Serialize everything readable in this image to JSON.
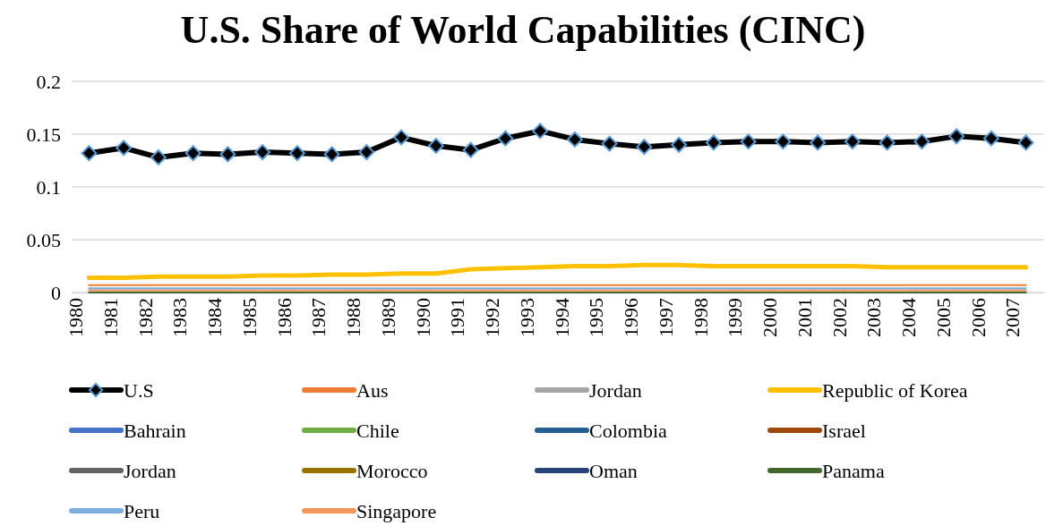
{
  "chart_data": {
    "type": "line",
    "title": "U.S. Share of World Capabilities (CINC)",
    "categories": [
      "1980",
      "1981",
      "1982",
      "1983",
      "1984",
      "1985",
      "1986",
      "1987",
      "1988",
      "1989",
      "1990",
      "1991",
      "1992",
      "1993",
      "1994",
      "1995",
      "1996",
      "1997",
      "1998",
      "1999",
      "2000",
      "2001",
      "2002",
      "2003",
      "2004",
      "2005",
      "2006",
      "2007"
    ],
    "ylim": [
      0,
      0.2
    ],
    "yticks": [
      0,
      0.05,
      0.1,
      0.15,
      0.2
    ],
    "grid": "y",
    "legend": "bottom",
    "line_style": "solid",
    "series": [
      {
        "name": "U.S",
        "color": "#000000",
        "marker": "diamond",
        "values": [
          0.132,
          0.137,
          0.128,
          0.132,
          0.131,
          0.133,
          0.132,
          0.131,
          0.133,
          0.147,
          0.139,
          0.135,
          0.146,
          0.153,
          0.145,
          0.141,
          0.138,
          0.14,
          0.142,
          0.143,
          0.143,
          0.142,
          0.143,
          0.142,
          0.143,
          0.148,
          0.146,
          0.142
        ]
      },
      {
        "name": "Aus",
        "color": "#ed7d31",
        "values": [
          0.007,
          0.007,
          0.007,
          0.007,
          0.007,
          0.007,
          0.007,
          0.007,
          0.007,
          0.007,
          0.007,
          0.007,
          0.007,
          0.007,
          0.007,
          0.007,
          0.007,
          0.007,
          0.007,
          0.007,
          0.007,
          0.007,
          0.007,
          0.007,
          0.007,
          0.007,
          0.007,
          0.007
        ]
      },
      {
        "name": "Jordan",
        "color": "#a5a5a5",
        "values": [
          null,
          null,
          null,
          null,
          null,
          null,
          null,
          null,
          null,
          null,
          null,
          null,
          null,
          null,
          null,
          null,
          null,
          null,
          null,
          null,
          null,
          null,
          null,
          null,
          null,
          null,
          null,
          null
        ]
      },
      {
        "name": "Republic of Korea",
        "color": "#ffc000",
        "values": [
          0.014,
          0.014,
          0.015,
          0.015,
          0.015,
          0.016,
          0.016,
          0.017,
          0.017,
          0.018,
          0.018,
          0.022,
          0.023,
          0.024,
          0.025,
          0.025,
          0.026,
          0.026,
          0.025,
          0.025,
          0.025,
          0.025,
          0.025,
          0.024,
          0.024,
          0.024,
          0.024,
          0.024
        ]
      },
      {
        "name": "Bahrain",
        "color": "#4472c4",
        "values": [
          null,
          null,
          null,
          null,
          null,
          null,
          null,
          null,
          null,
          null,
          null,
          null,
          null,
          null,
          null,
          null,
          null,
          null,
          null,
          null,
          null,
          null,
          null,
          null,
          null,
          null,
          null,
          null
        ]
      },
      {
        "name": "Chile",
        "color": "#70ad47",
        "values": [
          null,
          null,
          null,
          null,
          null,
          null,
          null,
          null,
          null,
          null,
          null,
          null,
          null,
          null,
          null,
          null,
          null,
          null,
          null,
          null,
          null,
          null,
          null,
          null,
          null,
          null,
          null,
          null
        ]
      },
      {
        "name": "Colombia",
        "color": "#255e91",
        "values": [
          null,
          null,
          null,
          null,
          null,
          null,
          null,
          null,
          null,
          null,
          null,
          null,
          null,
          null,
          null,
          null,
          null,
          null,
          null,
          null,
          null,
          null,
          null,
          null,
          null,
          null,
          null,
          null
        ]
      },
      {
        "name": "Israel",
        "color": "#9e480e",
        "values": [
          null,
          null,
          null,
          null,
          null,
          null,
          null,
          null,
          null,
          null,
          null,
          null,
          null,
          null,
          null,
          null,
          null,
          null,
          null,
          null,
          null,
          null,
          null,
          null,
          null,
          null,
          null,
          null
        ]
      },
      {
        "name": "Jordan",
        "color": "#636363",
        "values": [
          null,
          null,
          null,
          null,
          null,
          null,
          null,
          null,
          null,
          null,
          null,
          null,
          null,
          null,
          null,
          null,
          null,
          null,
          null,
          null,
          null,
          null,
          null,
          null,
          null,
          null,
          null,
          null
        ]
      },
      {
        "name": "Morocco",
        "color": "#997300",
        "values": [
          null,
          null,
          null,
          null,
          null,
          null,
          null,
          null,
          null,
          null,
          null,
          null,
          null,
          null,
          null,
          null,
          null,
          null,
          null,
          null,
          null,
          null,
          null,
          null,
          null,
          null,
          null,
          null
        ]
      },
      {
        "name": "Oman",
        "color": "#264478",
        "values": [
          null,
          null,
          null,
          null,
          null,
          null,
          null,
          null,
          null,
          null,
          null,
          null,
          null,
          null,
          null,
          null,
          null,
          null,
          null,
          null,
          null,
          null,
          null,
          null,
          null,
          null,
          null,
          null
        ]
      },
      {
        "name": "Panama",
        "color": "#43682b",
        "values": [
          0,
          0,
          0,
          0,
          0,
          0,
          0,
          0,
          0,
          0,
          0,
          0,
          0,
          0,
          0,
          0,
          0,
          0,
          0,
          0,
          0,
          0,
          0,
          0,
          0,
          0,
          0,
          0
        ]
      },
      {
        "name": "Peru",
        "color": "#7cafdd",
        "values": [
          0.004,
          0.004,
          0.004,
          0.004,
          0.004,
          0.004,
          0.004,
          0.004,
          0.004,
          0.004,
          0.004,
          0.004,
          0.004,
          0.004,
          0.004,
          0.004,
          0.004,
          0.004,
          0.004,
          0.004,
          0.004,
          0.004,
          0.004,
          0.004,
          0.004,
          0.004,
          0.004,
          0.004
        ]
      },
      {
        "name": "Singapore",
        "color": "#f1975a",
        "values": [
          0.002,
          0.002,
          0.002,
          0.002,
          0.002,
          0.002,
          0.002,
          0.002,
          0.002,
          0.002,
          0.002,
          0.002,
          0.002,
          0.002,
          0.002,
          0.002,
          0.002,
          0.002,
          0.002,
          0.002,
          0.002,
          0.002,
          0.002,
          0.002,
          0.002,
          0.002,
          0.002,
          0.002
        ]
      }
    ]
  }
}
